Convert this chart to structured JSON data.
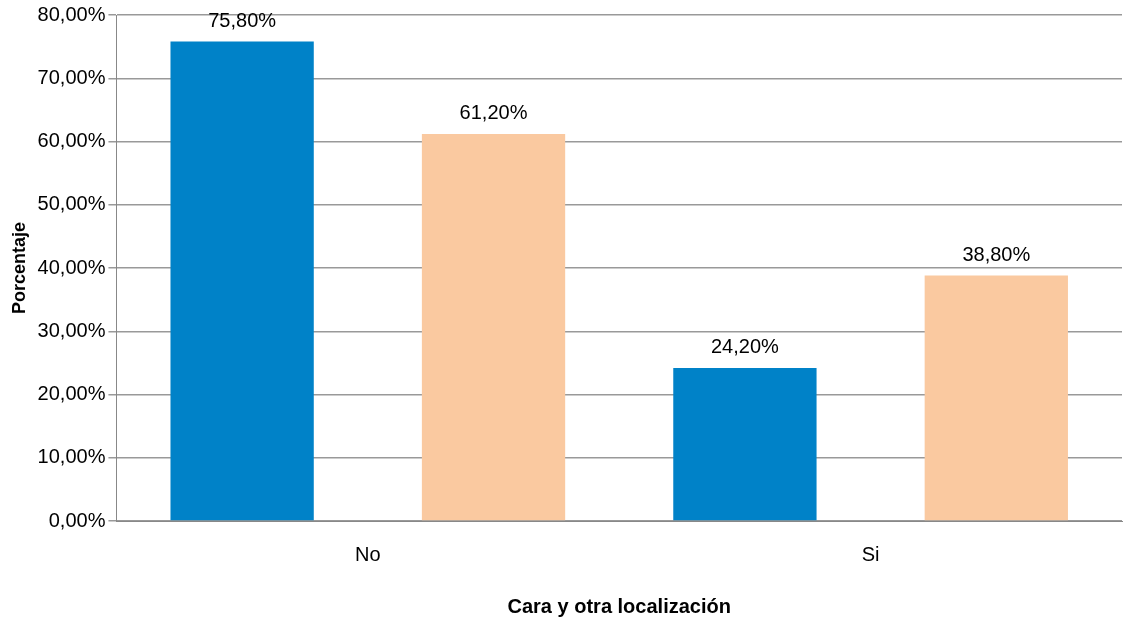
{
  "chart_data": {
    "type": "bar",
    "xlabel": "Cara y otra localización",
    "ylabel": "Porcentaje",
    "categories": [
      "No",
      "Si"
    ],
    "series": [
      {
        "color": "#0082c8",
        "values": [
          75.8,
          24.2
        ],
        "value_labels": [
          "75,80%",
          "24,20%"
        ]
      },
      {
        "color": "#fac9a0",
        "values": [
          61.2,
          38.8
        ],
        "value_labels": [
          "61,20%",
          "38,80%"
        ]
      }
    ],
    "ylim": [
      0,
      80
    ],
    "yticks": [
      {
        "value": 0,
        "label": "0,00%"
      },
      {
        "value": 10,
        "label": "10,00%"
      },
      {
        "value": 20,
        "label": "20,00%"
      },
      {
        "value": 30,
        "label": "30,00%"
      },
      {
        "value": 40,
        "label": "40,00%"
      },
      {
        "value": 50,
        "label": "50,00%"
      },
      {
        "value": 60,
        "label": "60,00%"
      },
      {
        "value": 70,
        "label": "70,00%"
      },
      {
        "value": 80,
        "label": "80,00%"
      }
    ],
    "grid": "y",
    "legend": false
  }
}
